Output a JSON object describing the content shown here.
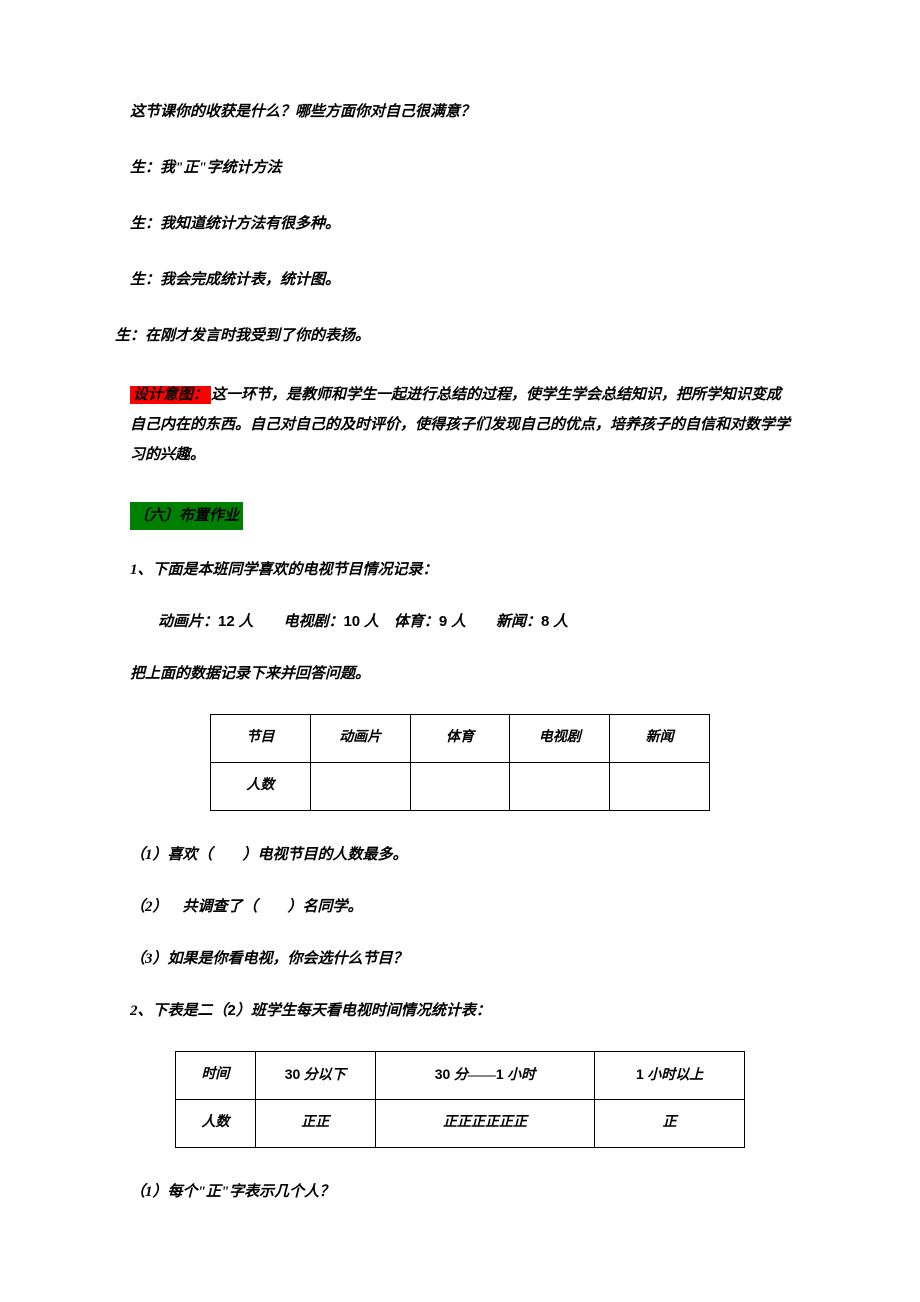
{
  "intro": {
    "q": "这节课你的收获是什么？哪些方面你对自己很满意？",
    "s1": "生：我\"正\"字统计方法",
    "s2": "生：我知道统计方法有很多种。",
    "s3": "生：我会完成统计表，统计图。",
    "s4": "生：在刚才发言时我受到了你的表扬。"
  },
  "design": {
    "label": "设计意图：",
    "text": "这一环节，是教师和学生一起进行总结的过程，使学生学会总结知识，把所学知识变成自己内在的东西。自己对自己的及时评价，使得孩子们发现自己的优点，培养孩子的自信和对数学学习的兴趣。"
  },
  "section6": {
    "title": "〔六〕布置作业"
  },
  "hw1": {
    "intro": "1、下面是本班同学喜欢的电视节目情况记录：",
    "data_prefix": "动画片：",
    "data_v1": "12",
    "data_t1": " 人  电视剧：",
    "data_v2": "10",
    "data_t2": " 人 体育：",
    "data_v3": "9",
    "data_t3": " 人  新闻：",
    "data_v4": "8",
    "data_t4": " 人",
    "instruction": "把上面的数据记录下来并回答问题。",
    "table": {
      "h1": "节目",
      "h2": "动画片",
      "h3": "体育",
      "h4": "电视剧",
      "h5": "新闻",
      "r1": "人数"
    },
    "q1": "（1）喜欢（  ）电视节目的人数最多。",
    "q2": "（2） 共调查了（  ）名同学。",
    "q3": "（3）如果是你看电视，你会选什么节目？"
  },
  "hw2": {
    "intro_a": "2、下表是二（",
    "intro_n": "2",
    "intro_b": "）班学生每天看电视时间情况统计表：",
    "table": {
      "h1": "时间",
      "h2a": "30",
      "h2b": " 分以下",
      "h3a": "30",
      "h3b": " 分——",
      "h3c": "1",
      "h3d": " 小时",
      "h4a": "1",
      "h4b": " 小时以上",
      "r1": "人数",
      "r2": "正正",
      "r3": "正正正正正正",
      "r4": "正"
    },
    "q1": "（1）每个\"正\"字表示几个人？"
  }
}
